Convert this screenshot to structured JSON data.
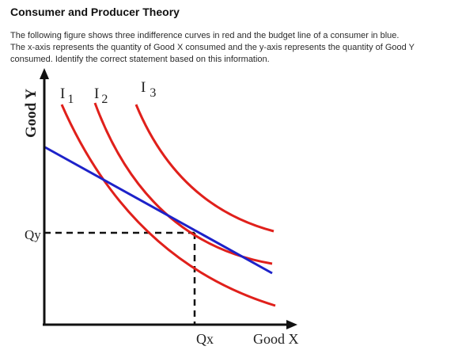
{
  "header": {
    "title": "Consumer and Producer Theory"
  },
  "question": {
    "lines": [
      "The following figure shows three indifference curves in red and the budget line of a consumer in blue.",
      "The x-axis represents the quantity of Good X consumed and the y-axis represents the quantity of Good Y",
      "consumed. Identify the correct statement based on this information."
    ]
  },
  "figure": {
    "y_axis_label": "Good Y",
    "x_axis_label": "Good X",
    "qy_label": "Qy",
    "qx_label": "Qx",
    "curves": [
      {
        "name": "I",
        "subscript": "1"
      },
      {
        "name": "I",
        "subscript": "2"
      },
      {
        "name": "I",
        "subscript": "3"
      }
    ],
    "colors": {
      "indifference": "#e0201b",
      "budget": "#1d22c9",
      "axes": "#111111"
    }
  }
}
